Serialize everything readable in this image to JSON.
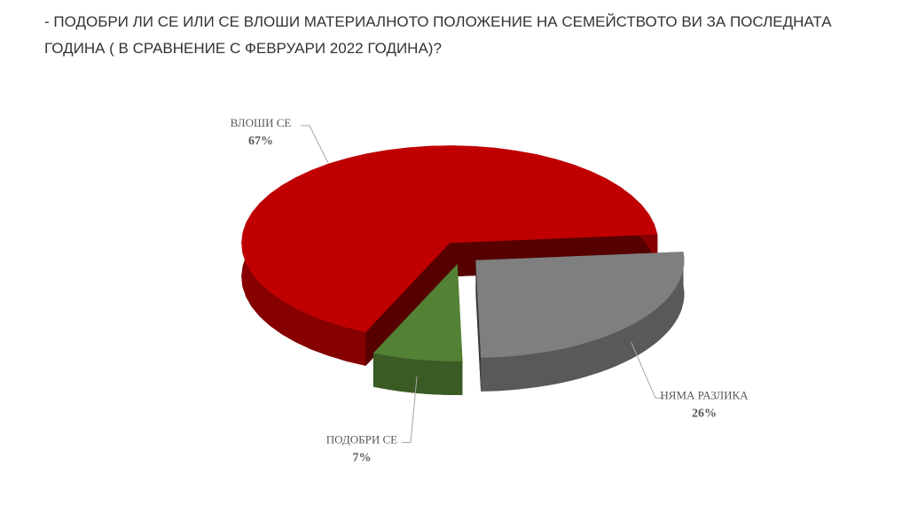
{
  "chart_data": {
    "type": "pie3d",
    "title": "- ПОДОБРИ ЛИ СЕ ИЛИ СЕ ВЛОШИ МАТЕРИАЛНОТО ПОЛОЖЕНИЕ НА СЕМЕЙСТВОТО ВИ ЗА ПОСЛЕДНАТА ГОДИНА ( В СРАВНЕНИЕ С ФЕВРУАРИ 2022 ГОДИНА)?",
    "categories": [
      "НЯМА РАЗЛИКА",
      "ПОДОБРИ СЕ",
      "ВЛОШИ СЕ"
    ],
    "values": [
      26,
      7,
      67
    ],
    "value_labels": [
      "26%",
      "7%",
      "67%"
    ],
    "colors": [
      "#7f7f7f",
      "#548235",
      "#c00000"
    ]
  }
}
